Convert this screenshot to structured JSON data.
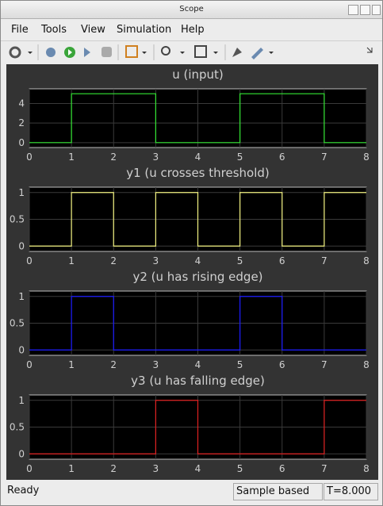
{
  "window": {
    "title": "Scope"
  },
  "menu": [
    "File",
    "Tools",
    "View",
    "Simulation",
    "Help"
  ],
  "status": {
    "message": "Ready",
    "mode": "Sample based",
    "time": "T=8.000"
  },
  "chart_data": [
    {
      "type": "line",
      "title": "u (input)",
      "x": [
        0,
        1,
        1,
        3,
        3,
        5,
        5,
        7,
        7,
        8
      ],
      "values": [
        0,
        0,
        5,
        5,
        0,
        0,
        5,
        5,
        0,
        0
      ],
      "color": "#33e633",
      "xlim": [
        0,
        8
      ],
      "xticks": [
        0,
        1,
        2,
        3,
        4,
        5,
        6,
        7,
        8
      ],
      "ylim": [
        -0.5,
        5.5
      ],
      "yticks": [
        0,
        2,
        4
      ],
      "grid": true
    },
    {
      "type": "line",
      "title": "y1 (u crosses threshold)",
      "x": [
        0,
        1,
        1,
        2,
        2,
        3,
        3,
        4,
        4,
        5,
        5,
        6,
        6,
        7,
        7,
        8
      ],
      "values": [
        0,
        0,
        1,
        1,
        0,
        0,
        1,
        1,
        0,
        0,
        1,
        1,
        0,
        0,
        1,
        1
      ],
      "color": "#f2f280",
      "xlim": [
        0,
        8
      ],
      "xticks": [
        0,
        1,
        2,
        3,
        4,
        5,
        6,
        7,
        8
      ],
      "ylim": [
        -0.1,
        1.1
      ],
      "yticks": [
        0,
        0.5,
        1
      ],
      "grid": true
    },
    {
      "type": "line",
      "title": "y2 (u has rising edge)",
      "x": [
        0,
        1,
        1,
        2,
        2,
        5,
        5,
        6,
        6,
        8
      ],
      "values": [
        0,
        0,
        1,
        1,
        0,
        0,
        1,
        1,
        0,
        0
      ],
      "color": "#1a1aff",
      "xlim": [
        0,
        8
      ],
      "xticks": [
        0,
        1,
        2,
        3,
        4,
        5,
        6,
        7,
        8
      ],
      "ylim": [
        -0.1,
        1.1
      ],
      "yticks": [
        0,
        0.5,
        1
      ],
      "grid": true
    },
    {
      "type": "line",
      "title": "y3 (u has falling edge)",
      "x": [
        0,
        3,
        3,
        4,
        4,
        7,
        7,
        8
      ],
      "values": [
        0,
        0,
        1,
        1,
        0,
        0,
        1,
        1
      ],
      "color": "#e02020",
      "xlim": [
        0,
        8
      ],
      "xticks": [
        0,
        1,
        2,
        3,
        4,
        5,
        6,
        7,
        8
      ],
      "ylim": [
        -0.1,
        1.1
      ],
      "yticks": [
        0,
        0.5,
        1
      ],
      "grid": true
    }
  ]
}
